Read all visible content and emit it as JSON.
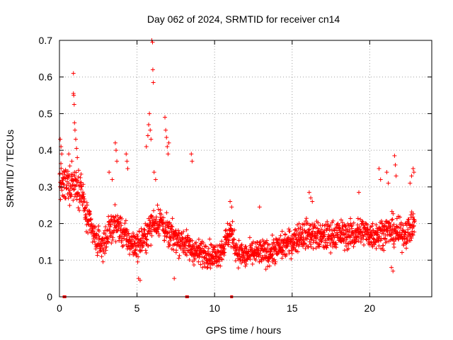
{
  "chart_data": {
    "type": "scatter",
    "title": "Day 062 of 2024, SRMTID for receiver cn14",
    "xlabel": "GPS time / hours",
    "ylabel": "SRMTID / TECUs",
    "xlim": [
      0,
      24
    ],
    "ylim": [
      0,
      0.7
    ],
    "grid": true,
    "marker": "+",
    "color": "#ff0000",
    "x_ticks": [
      {
        "value": 0,
        "label": "0"
      },
      {
        "value": 5,
        "label": "5"
      },
      {
        "value": 10,
        "label": "10"
      },
      {
        "value": 15,
        "label": "15"
      },
      {
        "value": 20,
        "label": "20"
      }
    ],
    "y_ticks": [
      {
        "value": 0,
        "label": "0"
      },
      {
        "value": 0.1,
        "label": "0.1"
      },
      {
        "value": 0.2,
        "label": "0.2"
      },
      {
        "value": 0.3,
        "label": "0.3"
      },
      {
        "value": 0.4,
        "label": "0.4"
      },
      {
        "value": 0.5,
        "label": "0.5"
      },
      {
        "value": 0.6,
        "label": "0.6"
      },
      {
        "value": 0.7,
        "label": "0.7"
      }
    ],
    "trend_profile": [
      [
        0.0,
        0.32
      ],
      [
        0.3,
        0.3
      ],
      [
        0.7,
        0.31
      ],
      [
        1.0,
        0.31
      ],
      [
        1.4,
        0.3
      ],
      [
        1.7,
        0.22
      ],
      [
        2.0,
        0.19
      ],
      [
        2.4,
        0.15
      ],
      [
        2.8,
        0.14
      ],
      [
        3.2,
        0.18
      ],
      [
        3.6,
        0.2
      ],
      [
        4.0,
        0.18
      ],
      [
        4.5,
        0.15
      ],
      [
        5.0,
        0.14
      ],
      [
        5.5,
        0.16
      ],
      [
        6.0,
        0.2
      ],
      [
        6.5,
        0.21
      ],
      [
        7.0,
        0.17
      ],
      [
        7.5,
        0.16
      ],
      [
        8.0,
        0.15
      ],
      [
        8.5,
        0.13
      ],
      [
        9.0,
        0.12
      ],
      [
        9.5,
        0.12
      ],
      [
        10.0,
        0.11
      ],
      [
        10.5,
        0.13
      ],
      [
        11.0,
        0.18
      ],
      [
        11.5,
        0.12
      ],
      [
        12.0,
        0.11
      ],
      [
        12.5,
        0.12
      ],
      [
        13.0,
        0.12
      ],
      [
        13.5,
        0.12
      ],
      [
        14.0,
        0.13
      ],
      [
        14.5,
        0.14
      ],
      [
        15.0,
        0.15
      ],
      [
        15.5,
        0.17
      ],
      [
        16.0,
        0.17
      ],
      [
        16.5,
        0.17
      ],
      [
        17.0,
        0.16
      ],
      [
        17.5,
        0.17
      ],
      [
        18.0,
        0.17
      ],
      [
        18.5,
        0.17
      ],
      [
        19.0,
        0.17
      ],
      [
        19.5,
        0.18
      ],
      [
        20.0,
        0.17
      ],
      [
        20.5,
        0.17
      ],
      [
        21.0,
        0.18
      ],
      [
        21.5,
        0.18
      ],
      [
        22.0,
        0.17
      ],
      [
        22.5,
        0.18
      ],
      [
        22.9,
        0.2
      ]
    ],
    "spikes": [
      {
        "x": 0.05,
        "y": 0.43
      },
      {
        "x": 0.1,
        "y": 0.41
      },
      {
        "x": 0.15,
        "y": 0.39
      },
      {
        "x": 0.6,
        "y": 0.39
      },
      {
        "x": 0.8,
        "y": 0.37
      },
      {
        "x": 0.9,
        "y": 0.61
      },
      {
        "x": 0.9,
        "y": 0.555
      },
      {
        "x": 0.92,
        "y": 0.55
      },
      {
        "x": 0.95,
        "y": 0.525
      },
      {
        "x": 0.97,
        "y": 0.475
      },
      {
        "x": 1.0,
        "y": 0.455
      },
      {
        "x": 1.05,
        "y": 0.43
      },
      {
        "x": 1.1,
        "y": 0.405
      },
      {
        "x": 1.15,
        "y": 0.38
      },
      {
        "x": 3.2,
        "y": 0.34
      },
      {
        "x": 3.4,
        "y": 0.32
      },
      {
        "x": 3.6,
        "y": 0.42
      },
      {
        "x": 3.65,
        "y": 0.4
      },
      {
        "x": 3.7,
        "y": 0.37
      },
      {
        "x": 4.3,
        "y": 0.39
      },
      {
        "x": 4.35,
        "y": 0.37
      },
      {
        "x": 4.4,
        "y": 0.35
      },
      {
        "x": 5.6,
        "y": 0.41
      },
      {
        "x": 5.7,
        "y": 0.44
      },
      {
        "x": 5.75,
        "y": 0.47
      },
      {
        "x": 5.8,
        "y": 0.5
      },
      {
        "x": 5.85,
        "y": 0.455
      },
      {
        "x": 5.9,
        "y": 0.43
      },
      {
        "x": 5.95,
        "y": 0.7
      },
      {
        "x": 6.0,
        "y": 0.695
      },
      {
        "x": 6.02,
        "y": 0.62
      },
      {
        "x": 6.05,
        "y": 0.585
      },
      {
        "x": 6.1,
        "y": 0.34
      },
      {
        "x": 6.2,
        "y": 0.32
      },
      {
        "x": 6.8,
        "y": 0.49
      },
      {
        "x": 6.85,
        "y": 0.455
      },
      {
        "x": 6.9,
        "y": 0.435
      },
      {
        "x": 6.95,
        "y": 0.41
      },
      {
        "x": 7.0,
        "y": 0.39
      },
      {
        "x": 7.05,
        "y": 0.42
      },
      {
        "x": 8.5,
        "y": 0.39
      },
      {
        "x": 8.55,
        "y": 0.37
      },
      {
        "x": 11.0,
        "y": 0.26
      },
      {
        "x": 11.1,
        "y": 0.245
      },
      {
        "x": 12.9,
        "y": 0.245
      },
      {
        "x": 16.1,
        "y": 0.285
      },
      {
        "x": 16.2,
        "y": 0.27
      },
      {
        "x": 16.3,
        "y": 0.26
      },
      {
        "x": 19.3,
        "y": 0.285
      },
      {
        "x": 20.6,
        "y": 0.35
      },
      {
        "x": 20.7,
        "y": 0.32
      },
      {
        "x": 21.1,
        "y": 0.34
      },
      {
        "x": 21.2,
        "y": 0.31
      },
      {
        "x": 21.6,
        "y": 0.385
      },
      {
        "x": 21.65,
        "y": 0.36
      },
      {
        "x": 21.7,
        "y": 0.33
      },
      {
        "x": 22.8,
        "y": 0.35
      },
      {
        "x": 22.85,
        "y": 0.34
      },
      {
        "x": 22.7,
        "y": 0.33
      },
      {
        "x": 22.6,
        "y": 0.31
      },
      {
        "x": 21.5,
        "y": 0.07
      },
      {
        "x": 21.4,
        "y": 0.08
      },
      {
        "x": 5.1,
        "y": 0.05
      },
      {
        "x": 5.2,
        "y": 0.045
      },
      {
        "x": 7.4,
        "y": 0.05
      }
    ],
    "zero_points": [
      {
        "x": 0.3,
        "y": 0
      },
      {
        "x": 0.35,
        "y": 0
      },
      {
        "x": 8.2,
        "y": 0
      },
      {
        "x": 8.25,
        "y": 0
      },
      {
        "x": 11.1,
        "y": 0
      }
    ]
  }
}
